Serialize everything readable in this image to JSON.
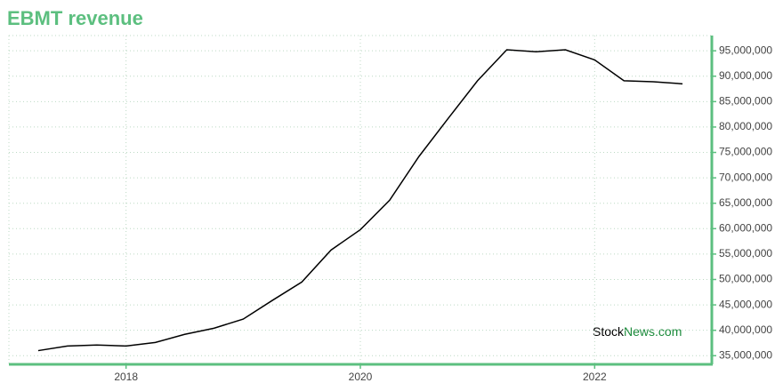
{
  "chart_data": {
    "type": "line",
    "title": "EBMT revenue",
    "x": [
      2017.25,
      2017.5,
      2017.75,
      2018,
      2018.25,
      2018.5,
      2018.75,
      2019,
      2019.25,
      2019.5,
      2019.75,
      2020,
      2020.25,
      2020.5,
      2020.75,
      2021,
      2021.25,
      2021.5,
      2021.75,
      2022,
      2022.25,
      2022.5,
      2022.75
    ],
    "values": [
      36000000,
      36900000,
      37100000,
      36900000,
      37600000,
      39200000,
      40400000,
      42200000,
      45900000,
      49500000,
      55800000,
      59800000,
      65600000,
      74200000,
      81700000,
      89100000,
      95200000,
      94800000,
      95200000,
      93200000,
      89100000,
      88900000,
      88500000
    ],
    "color": "#000000",
    "xlim": [
      2017,
      2023
    ],
    "xticks": [
      2018,
      2020,
      2022
    ],
    "ylim": [
      33300000,
      98000000
    ],
    "yticks": [
      {
        "value": 35000000,
        "label": "35,000,000"
      },
      {
        "value": 40000000,
        "label": "40,000,000"
      },
      {
        "value": 45000000,
        "label": "45,000,000"
      },
      {
        "value": 50000000,
        "label": "50,000,000"
      },
      {
        "value": 55000000,
        "label": "55,000,000"
      },
      {
        "value": 60000000,
        "label": "60,000,000"
      },
      {
        "value": 65000000,
        "label": "65,000,000"
      },
      {
        "value": 70000000,
        "label": "70,000,000"
      },
      {
        "value": 75000000,
        "label": "75,000,000"
      },
      {
        "value": 80000000,
        "label": "80,000,000"
      },
      {
        "value": 85000000,
        "label": "85,000,000"
      },
      {
        "value": 90000000,
        "label": "90,000,000"
      },
      {
        "value": 95000000,
        "label": "95,000,000"
      }
    ],
    "grid": true,
    "axis_color": "#5cbf7f",
    "watermark": {
      "brand": "Stock",
      "suffix": "News.com"
    }
  }
}
